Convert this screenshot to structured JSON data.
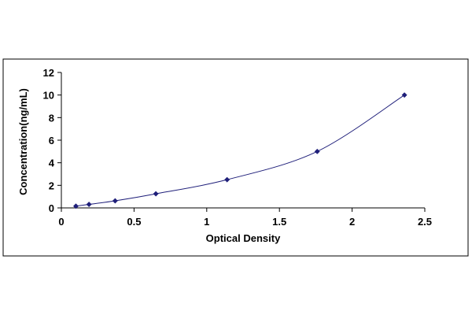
{
  "chart_data": {
    "type": "scatter",
    "title": "",
    "xlabel": "Optical Density",
    "ylabel": "Concentration(ng/mL)",
    "xlim": [
      0,
      2.5
    ],
    "ylim": [
      0,
      12
    ],
    "x_ticks": [
      "0",
      "0.5",
      "1",
      "1.5",
      "2",
      "2.5"
    ],
    "y_ticks": [
      "0",
      "2",
      "4",
      "6",
      "8",
      "10",
      "12"
    ],
    "grid": false,
    "legend": "none",
    "series": [
      {
        "x": [
          0.1,
          0.19,
          0.37,
          0.65,
          1.14,
          1.76,
          2.36
        ],
        "y": [
          0.156,
          0.312,
          0.625,
          1.25,
          2.5,
          5,
          10
        ],
        "marker": "diamond",
        "trendline": "smooth"
      }
    ],
    "colors": {
      "point": "#1f1f7a",
      "line": "#1f1f7a",
      "axis": "#000000",
      "frame": "#000000"
    }
  }
}
